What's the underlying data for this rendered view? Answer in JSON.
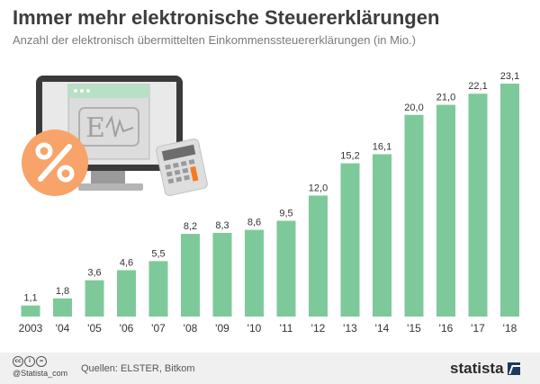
{
  "title": "Immer mehr elektronische Steuererklärungen",
  "subtitle": "Anzahl der elektronisch übermittelten Einkommenssteuererklärungen (in Mio.)",
  "colors": {
    "bar": "#7ec99a",
    "title": "#3d3d3d",
    "label": "#333333",
    "footer_bg": "#f0f0f0",
    "percent_badge": "#f8a36a",
    "accent_orange": "#f47b20"
  },
  "illustration": {
    "monitor_icon": "monitor-icon",
    "percent_icon": "percent-badge-icon",
    "calculator_icon": "calculator-icon",
    "monitor_logo_text": "E"
  },
  "chart_data": {
    "type": "bar",
    "categories": [
      "2003",
      "'04",
      "'05",
      "'06",
      "'07",
      "'08",
      "'09",
      "'10",
      "'11",
      "'12",
      "'13",
      "'14",
      "'15",
      "'16",
      "'17",
      "'18"
    ],
    "values": [
      1.1,
      1.8,
      3.6,
      4.6,
      5.5,
      8.2,
      8.3,
      8.6,
      9.5,
      12.0,
      15.2,
      16.1,
      20.0,
      21.0,
      22.1,
      23.1
    ],
    "value_labels": [
      "1,1",
      "1,8",
      "3,6",
      "4,6",
      "5,5",
      "8,2",
      "8,3",
      "8,6",
      "9,5",
      "12,0",
      "15,2",
      "16,1",
      "20,0",
      "21,0",
      "22,1",
      "23,1"
    ],
    "ylim": [
      0,
      23.1
    ],
    "grid": false,
    "legend": "none"
  },
  "footer": {
    "cc_icons": [
      "cc-icon",
      "by-icon",
      "nd-icon"
    ],
    "handle": "@Statista_com",
    "source": "Quellen: ELSTER, Bitkom",
    "logo": "statista",
    "logo_icon": "statista-logo-icon"
  }
}
